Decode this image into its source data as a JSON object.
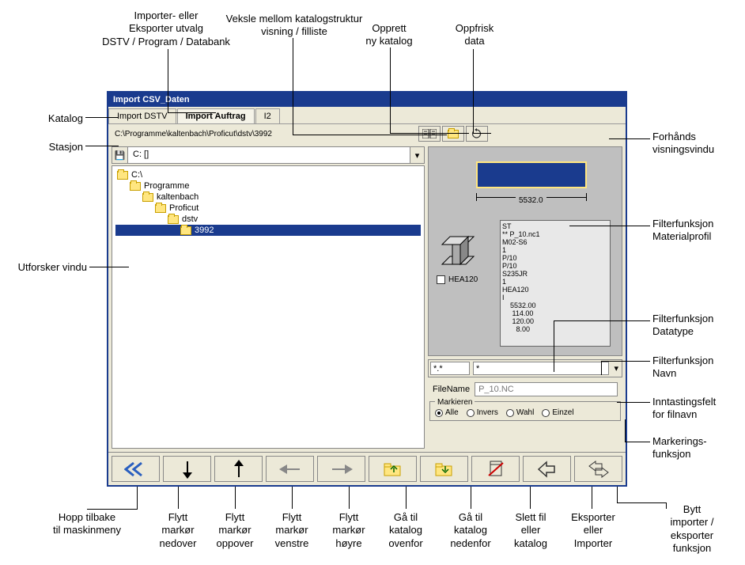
{
  "window": {
    "title": "Import  CSV_Daten",
    "tabs": [
      "Import DSTV",
      "Import Auftrag",
      "I2"
    ],
    "active_tab": 1,
    "path": "C:\\Programme\\kaltenbach\\Proficut\\dstv\\3992",
    "drive": "C: []"
  },
  "tree": [
    {
      "label": "C:\\",
      "indent": 0,
      "selected": false
    },
    {
      "label": "Programme",
      "indent": 1,
      "selected": false
    },
    {
      "label": "kaltenbach",
      "indent": 2,
      "selected": false
    },
    {
      "label": "Proficut",
      "indent": 3,
      "selected": false
    },
    {
      "label": "dstv",
      "indent": 4,
      "selected": false
    },
    {
      "label": "3992",
      "indent": 5,
      "selected": true
    }
  ],
  "preview": {
    "dimension": "5532.0",
    "profile_label": "HEA120",
    "data_text": "ST\n** P_10.nc1\nM02-S6\n1\nP/10\nP/10\nS235JR\n1\nHEA120\nI\n    5532.00\n     114.00\n     120.00\n       8.00"
  },
  "filter": {
    "type": "*.*",
    "name": "*"
  },
  "filename": {
    "label": "FileName",
    "value": "P_10.NC"
  },
  "mark": {
    "legend": "Markieren",
    "options": [
      "Alle",
      "Invers",
      "Wahl",
      "Einzel"
    ],
    "selected": 0
  },
  "callouts": {
    "top1": "Importer- eller\nEksporter utvalg\nDSTV / Program / Databank",
    "top2": "Veksle mellom katalogstruktur\nvisning / filliste",
    "top3": "Opprett\nny katalog",
    "top4": "Oppfrisk\ndata",
    "left1": "Katalog",
    "left2": "Stasjon",
    "left3": "Utforsker vindu",
    "right1": "Forhånds\nvisningsvindu",
    "right2": "Filterfunksjon\nMaterialprofil",
    "right3": "Filterfunksjon\nDatatype",
    "right4": "Filterfunksjon\nNavn",
    "right5": "Inntastingsfelt\nfor filnavn",
    "right6": "Markerings-\nfunksjon",
    "bottom1": "Hopp tilbake\ntil maskinmeny",
    "bottom2": "Flytt\nmarkør\nnedover",
    "bottom3": "Flytt\nmarkør\noppover",
    "bottom4": "Flytt\nmarkør\nvenstre",
    "bottom5": "Flytt\nmarkør\nhøyre",
    "bottom6": "Gå til\nkatalog\novenfor",
    "bottom7": "Gå til\nkatalog\nnedenfor",
    "bottom8": "Slett fil\neller\nkatalog",
    "bottom9": "Eksporter\neller\nImporter",
    "bottom10": "Bytt\nimporter /\neksporter\nfunksjon"
  }
}
